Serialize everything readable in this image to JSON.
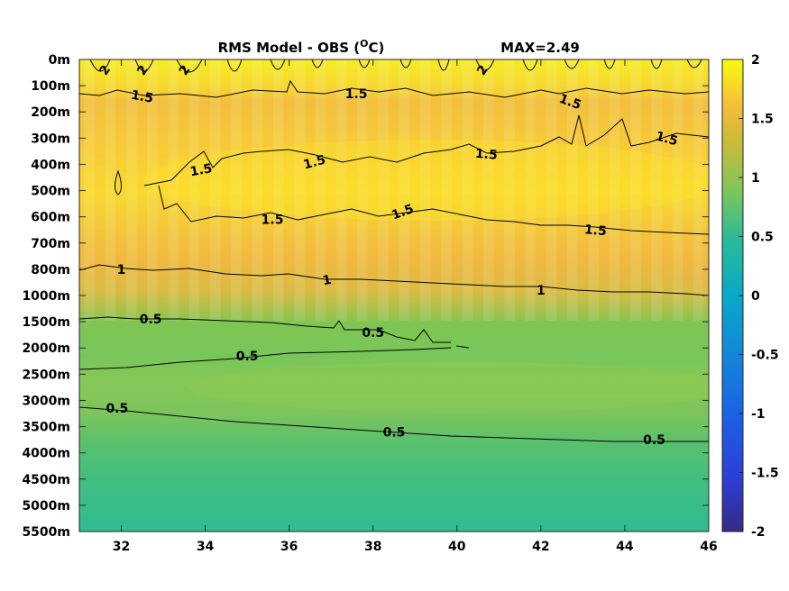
{
  "chart_data": {
    "type": "heatmap",
    "title": "RMS Model - OBS (",
    "title_unit": "C)",
    "title_unit_sup": "O",
    "max_label": "MAX=2.49",
    "xlim": [
      31,
      46
    ],
    "x_ticks": [
      "32",
      "34",
      "36",
      "38",
      "40",
      "42",
      "44",
      "46"
    ],
    "x_tick_values": [
      32,
      34,
      36,
      38,
      40,
      42,
      44,
      46
    ],
    "y_ticks": [
      "0m",
      "100m",
      "200m",
      "300m",
      "400m",
      "500m",
      "600m",
      "700m",
      "800m",
      "1000m",
      "1500m",
      "2000m",
      "2500m",
      "3000m",
      "3500m",
      "4000m",
      "4500m",
      "5000m",
      "5500m"
    ],
    "colorbar": {
      "range": [
        -2,
        2
      ],
      "ticks": [
        "2",
        "1.5",
        "1",
        "0.5",
        "0",
        "-0.5",
        "-1",
        "-1.5",
        "-2"
      ],
      "tick_values": [
        2,
        1.5,
        1,
        0.5,
        0,
        -0.5,
        -1,
        -1.5,
        -2
      ],
      "colormap": "parula"
    },
    "depth_profile": [
      {
        "depth": "0m",
        "value": 1.85
      },
      {
        "depth": "100m",
        "value": 1.5
      },
      {
        "depth": "200m",
        "value": 1.4
      },
      {
        "depth": "300m",
        "value": 1.45
      },
      {
        "depth": "400m",
        "value": 1.55
      },
      {
        "depth": "500m",
        "value": 1.6
      },
      {
        "depth": "600m",
        "value": 1.45
      },
      {
        "depth": "700m",
        "value": 1.3
      },
      {
        "depth": "800m",
        "value": 1.05
      },
      {
        "depth": "1000m",
        "value": 0.9
      },
      {
        "depth": "1500m",
        "value": 0.6
      },
      {
        "depth": "2000m",
        "value": 0.55
      },
      {
        "depth": "2500m",
        "value": 0.6
      },
      {
        "depth": "3000m",
        "value": 0.55
      },
      {
        "depth": "3500m",
        "value": 0.45
      },
      {
        "depth": "4000m",
        "value": 0.4
      },
      {
        "depth": "4500m",
        "value": 0.4
      },
      {
        "depth": "5000m",
        "value": 0.4
      },
      {
        "depth": "5500m",
        "value": 0.4
      }
    ],
    "contour_labels": [
      {
        "text": "2",
        "x": 31.6,
        "depth_index": 0.4,
        "angle": -55
      },
      {
        "text": "2",
        "x": 32.5,
        "depth_index": 0.4,
        "angle": -55
      },
      {
        "text": "2",
        "x": 33.5,
        "depth_index": 0.4,
        "angle": -55
      },
      {
        "text": "2",
        "x": 40.6,
        "depth_index": 0.4,
        "angle": -55
      },
      {
        "text": "1.5",
        "x": 32.5,
        "depth_index": 1.4,
        "angle": 10
      },
      {
        "text": "1.5",
        "x": 37.6,
        "depth_index": 1.3,
        "angle": 0
      },
      {
        "text": "1.5",
        "x": 42.7,
        "depth_index": 1.6,
        "angle": 20
      },
      {
        "text": "1.5",
        "x": 33.9,
        "depth_index": 4.2,
        "angle": -10
      },
      {
        "text": "1.5",
        "x": 36.6,
        "depth_index": 3.9,
        "angle": -15
      },
      {
        "text": "1.5",
        "x": 40.7,
        "depth_index": 3.6,
        "angle": 5
      },
      {
        "text": "1.5",
        "x": 45.0,
        "depth_index": 3.0,
        "angle": 15
      },
      {
        "text": "1.5",
        "x": 35.6,
        "depth_index": 6.1,
        "angle": 0
      },
      {
        "text": "1.5",
        "x": 38.7,
        "depth_index": 5.8,
        "angle": -20
      },
      {
        "text": "1.5",
        "x": 43.3,
        "depth_index": 6.5,
        "angle": 5
      },
      {
        "text": "1",
        "x": 32.0,
        "depth_index": 8.0,
        "angle": 0
      },
      {
        "text": "1",
        "x": 36.9,
        "depth_index": 8.4,
        "angle": -10
      },
      {
        "text": "1",
        "x": 42.0,
        "depth_index": 8.8,
        "angle": 0
      },
      {
        "text": "0.5",
        "x": 32.7,
        "depth_index": 9.9,
        "angle": 0
      },
      {
        "text": "0.5",
        "x": 38.0,
        "depth_index": 10.4,
        "angle": 0
      },
      {
        "text": "0.5",
        "x": 35.0,
        "depth_index": 11.3,
        "angle": 0
      },
      {
        "text": "0.5",
        "x": 31.9,
        "depth_index": 13.3,
        "angle": 0
      },
      {
        "text": "0.5",
        "x": 38.5,
        "depth_index": 14.2,
        "angle": 0
      },
      {
        "text": "0.5",
        "x": 44.7,
        "depth_index": 14.5,
        "angle": 0
      }
    ]
  }
}
